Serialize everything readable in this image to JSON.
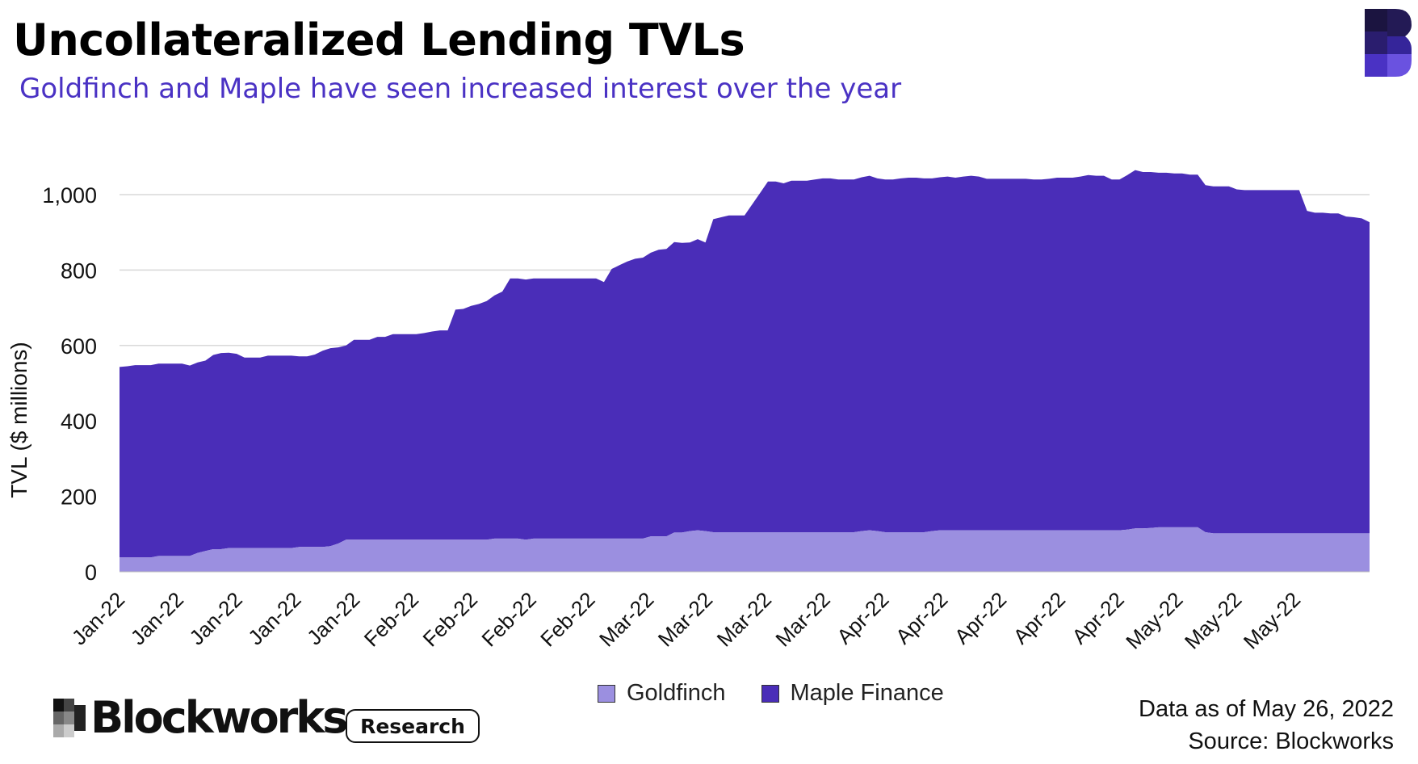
{
  "header": {
    "title": "Uncollateralized Lending TVLs",
    "subtitle": "Goldfinch and Maple have seen increased interest over the year"
  },
  "colors": {
    "goldfinch": "#9b8fe0",
    "maple": "#4a2db8",
    "subtitle": "#4a32c4",
    "gridline": "#d9d9d9"
  },
  "legend": {
    "items": [
      {
        "label": "Goldfinch",
        "color": "#9b8fe0"
      },
      {
        "label": "Maple Finance",
        "color": "#4a2db8"
      }
    ]
  },
  "footer": {
    "brand_name": "Blockworks",
    "badge": "Research",
    "data_note": "Data as of May 26, 2022",
    "source": "Source: Blockworks"
  },
  "chart_data": {
    "type": "area",
    "stacked": true,
    "ylabel": "TVL ($ millions)",
    "ylim": [
      0,
      1100
    ],
    "yticks": [
      0,
      200,
      400,
      600,
      800,
      1000
    ],
    "ytick_labels": [
      "0",
      "200",
      "400",
      "600",
      "800",
      "1,000"
    ],
    "xtick_labels": [
      "Jan-22",
      "Jan-22",
      "Jan-22",
      "Jan-22",
      "Jan-22",
      "Feb-22",
      "Feb-22",
      "Feb-22",
      "Feb-22",
      "Mar-22",
      "Mar-22",
      "Mar-22",
      "Mar-22",
      "Apr-22",
      "Apr-22",
      "Apr-22",
      "Apr-22",
      "Apr-22",
      "May-22",
      "May-22",
      "May-22"
    ],
    "grid": true,
    "legend_position": "bottom",
    "series": [
      {
        "name": "Goldfinch",
        "values": [
          38,
          38,
          38,
          38,
          38,
          42,
          42,
          42,
          42,
          42,
          50,
          55,
          60,
          60,
          63,
          63,
          63,
          63,
          63,
          63,
          63,
          63,
          63,
          66,
          66,
          66,
          66,
          68,
          75,
          85,
          85,
          85,
          85,
          85,
          85,
          85,
          85,
          85,
          85,
          85,
          85,
          85,
          85,
          85,
          85,
          85,
          85,
          85,
          88,
          88,
          88,
          88,
          85,
          88,
          88,
          88,
          88,
          88,
          88,
          88,
          88,
          88,
          88,
          88,
          88,
          88,
          88,
          88,
          94,
          94,
          94,
          104,
          104,
          108,
          110,
          108,
          105,
          105,
          105,
          105,
          105,
          105,
          105,
          105,
          105,
          105,
          105,
          105,
          105,
          105,
          105,
          105,
          105,
          105,
          105,
          108,
          110,
          108,
          105,
          105,
          105,
          105,
          105,
          105,
          108,
          110,
          110,
          110,
          110,
          110,
          110,
          110,
          110,
          110,
          110,
          110,
          110,
          110,
          110,
          110,
          110,
          110,
          110,
          110,
          110,
          110,
          110,
          110,
          110,
          112,
          115,
          115,
          116,
          118,
          118,
          118,
          118,
          118,
          118,
          105,
          102,
          102,
          102,
          102,
          102,
          102,
          102,
          102,
          102,
          102,
          102,
          102,
          102,
          102,
          102,
          102,
          102,
          102,
          102,
          102,
          102
        ]
      },
      {
        "name": "Maple Finance",
        "values": [
          505,
          507,
          510,
          510,
          510,
          510,
          510,
          510,
          510,
          505,
          505,
          505,
          515,
          520,
          518,
          515,
          505,
          505,
          505,
          510,
          510,
          510,
          510,
          505,
          505,
          510,
          520,
          525,
          520,
          515,
          530,
          530,
          530,
          538,
          538,
          545,
          545,
          545,
          545,
          548,
          552,
          555,
          555,
          610,
          612,
          620,
          625,
          633,
          645,
          655,
          690,
          690,
          690,
          690,
          690,
          690,
          690,
          690,
          690,
          690,
          690,
          690,
          680,
          715,
          725,
          735,
          742,
          745,
          752,
          760,
          762,
          770,
          768,
          765,
          772,
          765,
          830,
          835,
          840,
          840,
          840,
          870,
          900,
          930,
          930,
          925,
          932,
          932,
          932,
          935,
          938,
          938,
          935,
          935,
          935,
          938,
          940,
          935,
          935,
          935,
          938,
          940,
          940,
          938,
          935,
          936,
          938,
          935,
          938,
          940,
          938,
          932,
          932,
          932,
          932,
          932,
          932,
          930,
          930,
          932,
          935,
          935,
          935,
          938,
          942,
          940,
          940,
          930,
          930,
          940,
          950,
          945,
          944,
          940,
          940,
          938,
          938,
          935,
          935,
          920,
          920,
          920,
          920,
          912,
          910,
          910,
          910,
          910,
          910,
          910,
          910,
          910,
          855,
          850,
          850,
          848,
          848,
          840,
          838,
          835,
          825
        ]
      }
    ]
  }
}
